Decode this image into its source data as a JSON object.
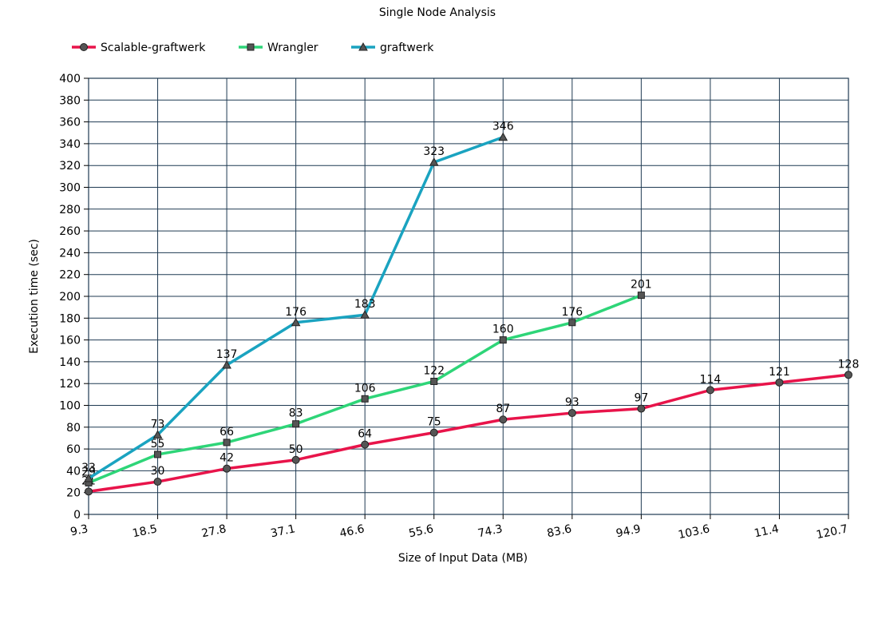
{
  "chart_data": {
    "type": "line",
    "title": "Single Node Analysis",
    "xlabel": "Size of Input Data (MB)",
    "ylabel": "Execution time (sec)",
    "categories": [
      "9.3",
      "18.5",
      "27.8",
      "37.1",
      "46.6",
      "55.6",
      "74.3",
      "83.6",
      "94.9",
      "103.6",
      "11.4",
      "120.7"
    ],
    "ylim": [
      0,
      400
    ],
    "yticks": [
      0,
      20,
      40,
      60,
      80,
      100,
      120,
      140,
      160,
      180,
      200,
      220,
      240,
      260,
      280,
      300,
      320,
      340,
      360,
      380,
      400
    ],
    "grid": true,
    "legend_position": "top-left",
    "series": [
      {
        "name": "Scalable-graftwerk",
        "color": "#e8144a",
        "marker": "circle",
        "values": [
          21,
          30,
          42,
          50,
          64,
          75,
          87,
          93,
          97,
          114,
          121,
          128
        ]
      },
      {
        "name": "Wrangler",
        "color": "#2ed578",
        "marker": "square",
        "values": [
          29,
          55,
          66,
          83,
          106,
          122,
          160,
          176,
          201,
          null,
          null,
          null
        ]
      },
      {
        "name": "graftwerk",
        "color": "#1aa3c0",
        "marker": "triangle",
        "values": [
          33,
          73,
          137,
          176,
          183,
          323,
          346,
          null,
          null,
          null,
          null,
          null
        ]
      }
    ]
  }
}
